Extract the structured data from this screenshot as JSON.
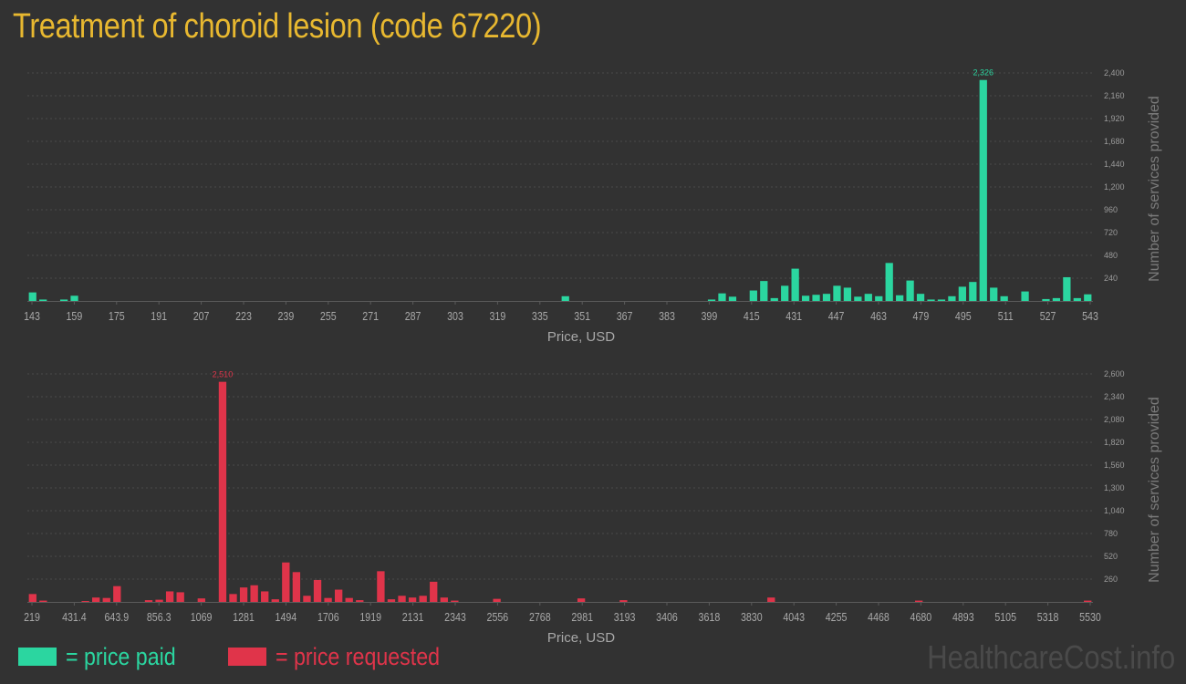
{
  "title": "Treatment of choroid lesion (code 67220)",
  "legend": {
    "paid_label": "= price paid",
    "requested_label": "= price requested"
  },
  "watermark": "HealthcareCost.info",
  "colors": {
    "paid": "#2bd6a0",
    "requested": "#e0344a",
    "title": "#e8b830",
    "background": "#323232"
  },
  "chart_data": [
    {
      "type": "bar",
      "name": "price paid",
      "color": "#2bd6a0",
      "xlabel": "Price, USD",
      "ylabel": "Number of services provided",
      "x_ticks": [
        "143",
        "159",
        "175",
        "191",
        "207",
        "223",
        "239",
        "255",
        "271",
        "287",
        "303",
        "319",
        "335",
        "351",
        "367",
        "383",
        "399",
        "415",
        "431",
        "447",
        "463",
        "479",
        "495",
        "511",
        "527",
        "543"
      ],
      "y_ticks": [
        240,
        480,
        720,
        960,
        1200,
        1440,
        1680,
        1920,
        2160,
        2400
      ],
      "y_tick_labels": [
        "240",
        "480",
        "720",
        "960",
        "1,200",
        "1,440",
        "1,680",
        "1,920",
        "2,160",
        "2,400"
      ],
      "ylim": [
        0,
        2400
      ],
      "grid": true,
      "values": [
        90,
        15,
        0,
        15,
        55,
        0,
        0,
        0,
        0,
        0,
        0,
        0,
        0,
        0,
        0,
        0,
        0,
        0,
        0,
        0,
        0,
        0,
        0,
        0,
        0,
        0,
        0,
        0,
        0,
        0,
        0,
        0,
        0,
        0,
        0,
        0,
        0,
        0,
        0,
        0,
        0,
        0,
        0,
        0,
        0,
        0,
        0,
        0,
        0,
        0,
        0,
        50,
        0,
        0,
        0,
        0,
        0,
        0,
        0,
        0,
        0,
        0,
        0,
        0,
        0,
        15,
        80,
        45,
        0,
        110,
        210,
        30,
        160,
        340,
        55,
        65,
        75,
        160,
        140,
        45,
        75,
        50,
        400,
        60,
        215,
        75,
        15,
        15,
        50,
        150,
        200,
        2326,
        140,
        50,
        0,
        100,
        0,
        20,
        30,
        250,
        30,
        70
      ],
      "peak_label": "2,326"
    },
    {
      "type": "bar",
      "name": "price requested",
      "color": "#e0344a",
      "xlabel": "Price, USD",
      "ylabel": "Number of services provided",
      "x_ticks": [
        "219",
        "431.4",
        "643.9",
        "856.3",
        "1069",
        "1281",
        "1494",
        "1706",
        "1919",
        "2131",
        "2343",
        "2556",
        "2768",
        "2981",
        "3193",
        "3406",
        "3618",
        "3830",
        "4043",
        "4255",
        "4468",
        "4680",
        "4893",
        "5105",
        "5318",
        "5530"
      ],
      "y_ticks": [
        260,
        520,
        780,
        1040,
        1300,
        1560,
        1820,
        2080,
        2340,
        2600
      ],
      "y_tick_labels": [
        "260",
        "520",
        "780",
        "1,040",
        "1,300",
        "1,560",
        "1,820",
        "2,080",
        "2,340",
        "2,600"
      ],
      "ylim": [
        0,
        2600
      ],
      "grid": true,
      "values": [
        90,
        15,
        0,
        0,
        0,
        10,
        50,
        45,
        180,
        0,
        0,
        20,
        25,
        120,
        110,
        0,
        40,
        0,
        2510,
        90,
        165,
        190,
        120,
        30,
        450,
        340,
        70,
        250,
        45,
        140,
        45,
        20,
        0,
        350,
        30,
        70,
        50,
        70,
        230,
        50,
        15,
        0,
        0,
        0,
        35,
        0,
        0,
        0,
        0,
        0,
        0,
        0,
        40,
        0,
        0,
        0,
        20,
        0,
        0,
        0,
        0,
        0,
        0,
        0,
        0,
        0,
        0,
        0,
        0,
        0,
        50,
        0,
        0,
        0,
        0,
        0,
        0,
        0,
        0,
        0,
        0,
        0,
        0,
        0,
        15,
        0,
        0,
        0,
        0,
        0,
        0,
        0,
        0,
        0,
        0,
        0,
        0,
        0,
        0,
        0,
        15
      ],
      "peak_label": "2,510"
    }
  ]
}
